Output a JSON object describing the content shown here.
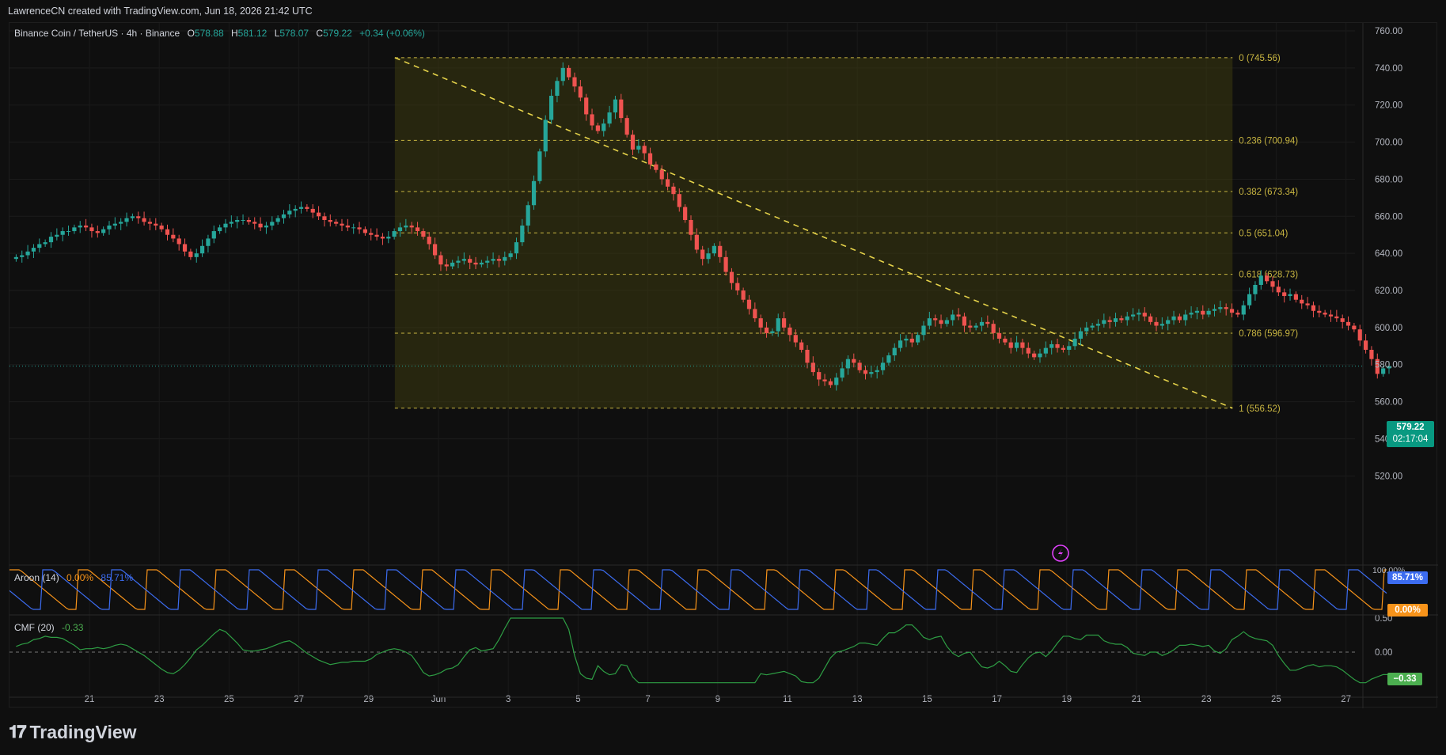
{
  "watermark": "LawrenceCN created with TradingView.com, Jun 18, 2026 21:42 UTC",
  "header": {
    "symbol": "Binance Coin / TetherUS · 4h · Binance",
    "o_label": "O",
    "o_value": "578.88",
    "h_label": "H",
    "h_value": "581.12",
    "l_label": "L",
    "l_value": "578.07",
    "c_label": "C",
    "c_value": "579.22",
    "change": "+0.34 (+0.06%)"
  },
  "price_tag": {
    "price": "579.22",
    "countdown": "02:17:04"
  },
  "aroon": {
    "label": "Aroon (14)",
    "up": "0.00%",
    "down": "85.71%",
    "tag_down": "85.71%",
    "tag_up": "0.00%",
    "axis_top": "100.00%"
  },
  "cmf": {
    "label": "CMF (20)",
    "value": "-0.33",
    "tag": "−0.33",
    "axis": [
      "0.50",
      "0.00"
    ]
  },
  "brand": {
    "name": "TradingView"
  },
  "colors": {
    "up": "#26a69a",
    "down": "#ef5350",
    "fib": "#c9b641",
    "aroon_up": "#f7931a",
    "aroon_down": "#3c6cf0",
    "cmf": "#2e7d32"
  },
  "chart_data": {
    "type": "candlestick",
    "timeframe": "4h",
    "y_axis_labels": [
      "760.00",
      "740.00",
      "720.00",
      "700.00",
      "680.00",
      "660.00",
      "640.00",
      "620.00",
      "600.00",
      "580.00",
      "560.00",
      "540.00",
      "520.00"
    ],
    "ylim": [
      516,
      762
    ],
    "x_axis_labels": [
      "21",
      "23",
      "25",
      "27",
      "29",
      "Jun",
      "3",
      "5",
      "7",
      "9",
      "11",
      "13",
      "15",
      "17",
      "19",
      "21",
      "23",
      "25",
      "27"
    ],
    "x_axis_days": [
      -10,
      -8,
      -6,
      -4,
      -2,
      0,
      2,
      4,
      6,
      8,
      10,
      12,
      14,
      16,
      18,
      20,
      22,
      24,
      26
    ],
    "fib_levels": [
      {
        "ratio": "0",
        "price": 745.56,
        "label": "0 (745.56)"
      },
      {
        "ratio": "0.236",
        "price": 700.94,
        "label": "0.236 (700.94)"
      },
      {
        "ratio": "0.382",
        "price": 673.34,
        "label": "0.382 (673.34)"
      },
      {
        "ratio": "0.5",
        "price": 651.04,
        "label": "0.5 (651.04)"
      },
      {
        "ratio": "0.618",
        "price": 628.73,
        "label": "0.618 (628.73)"
      },
      {
        "ratio": "0.786",
        "price": 596.97,
        "label": "0.786 (596.97)"
      },
      {
        "ratio": "1",
        "price": 556.52,
        "label": "1 (556.52)"
      }
    ],
    "fib_range_days": [
      -1.25,
      22.75
    ],
    "trendline": {
      "start": [
        -1.25,
        745.56
      ],
      "end": [
        22.75,
        556.52
      ]
    },
    "closes": [
      638,
      639,
      641,
      643,
      645,
      646,
      649,
      650,
      652,
      652,
      654,
      655,
      654,
      652,
      651,
      653,
      655,
      656,
      657,
      659,
      660,
      659,
      657,
      656,
      655,
      653,
      650,
      648,
      645,
      641,
      638,
      640,
      644,
      648,
      652,
      654,
      656,
      657,
      658,
      658,
      657,
      656,
      654,
      655,
      657,
      659,
      661,
      663,
      664,
      665,
      664,
      662,
      660,
      658,
      657,
      656,
      655,
      654,
      654,
      653,
      651,
      650,
      649,
      648,
      649,
      652,
      654,
      655,
      654,
      652,
      649,
      645,
      639,
      634,
      633,
      635,
      636,
      637,
      635,
      634,
      635,
      636,
      637,
      636,
      638,
      640,
      646,
      655,
      666,
      679,
      695,
      712,
      725,
      733,
      740,
      735,
      730,
      724,
      715,
      709,
      706,
      710,
      716,
      723,
      713,
      704,
      696,
      698,
      694,
      688,
      685,
      680,
      676,
      672,
      665,
      658,
      650,
      642,
      637,
      640,
      644,
      638,
      630,
      624,
      620,
      615,
      610,
      605,
      600,
      597,
      598,
      605,
      600,
      596,
      592,
      588,
      581,
      576,
      572,
      571,
      569,
      573,
      578,
      583,
      581,
      577,
      575,
      576,
      577,
      581,
      585,
      589,
      593,
      594,
      592,
      596,
      601,
      605,
      604,
      602,
      604,
      607,
      606,
      601,
      600,
      601,
      603,
      602,
      597,
      594,
      592,
      589,
      592,
      589,
      586,
      584,
      586,
      589,
      591,
      589,
      588,
      590,
      594,
      598,
      600,
      601,
      602,
      604,
      603,
      605,
      604,
      606,
      607,
      608,
      606,
      603,
      601,
      602,
      604,
      606,
      604,
      607,
      608,
      609,
      607,
      609,
      610,
      611,
      610,
      608,
      607,
      612,
      618,
      623,
      628,
      625,
      622,
      619,
      617,
      618,
      615,
      613,
      612,
      609,
      608,
      607,
      606,
      605,
      603,
      601,
      599,
      593,
      588,
      583,
      575,
      578,
      579.22
    ]
  }
}
